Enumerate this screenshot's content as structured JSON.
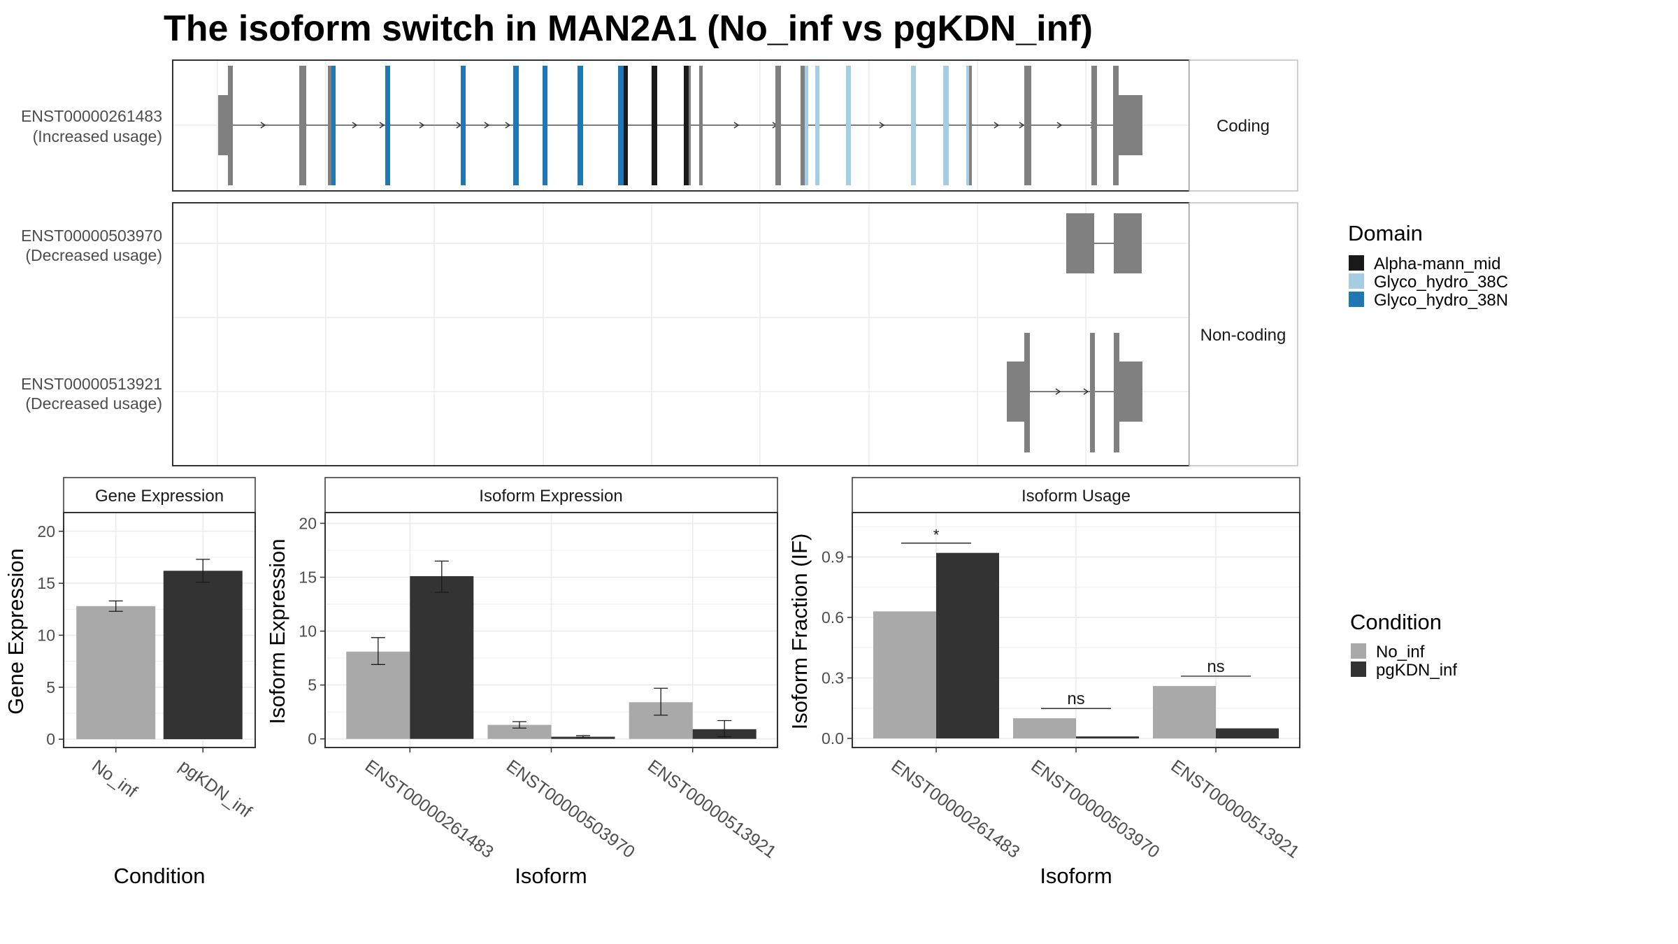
{
  "title": "The isoform switch in MAN2A1 (No_inf vs pgKDN_inf)",
  "colors": {
    "intron": "#808080",
    "Alpha-mann_mid": "#1a1a1a",
    "Glyco_hydro_38C": "#a6cee3",
    "Glyco_hydro_38N": "#1f78b4",
    "No_inf": "#a9a9a9",
    "pgKDN_inf": "#333333"
  },
  "structure": {
    "facets": [
      "Coding",
      "Non-coding"
    ],
    "transcripts": [
      {
        "id": "ENST00000261483",
        "usage": "(Increased usage)",
        "facet": "Coding"
      },
      {
        "id": "ENST00000503970",
        "usage": "(Decreased usage)",
        "facet": "Non-coding"
      },
      {
        "id": "ENST00000513921",
        "usage": "(Decreased usage)",
        "facet": "Non-coding"
      }
    ]
  },
  "legend_domain": {
    "title": "Domain",
    "items": [
      {
        "label": "Alpha-mann_mid",
        "color": "#1a1a1a"
      },
      {
        "label": "Glyco_hydro_38C",
        "color": "#a6cee3"
      },
      {
        "label": "Glyco_hydro_38N",
        "color": "#1f78b4"
      }
    ]
  },
  "legend_condition": {
    "title": "Condition",
    "items": [
      {
        "label": "No_inf",
        "color": "#a9a9a9"
      },
      {
        "label": "pgKDN_inf",
        "color": "#333333"
      }
    ]
  },
  "chart_data": [
    {
      "type": "bar",
      "title": "Gene Expression",
      "xlabel": "Condition",
      "ylabel": "Gene Expression",
      "categories": [
        "No_inf",
        "pgKDN_inf"
      ],
      "values": [
        12.8,
        16.2
      ],
      "error": [
        [
          12.3,
          13.3
        ],
        [
          15.1,
          17.3
        ]
      ],
      "ylim": [
        -0.8,
        21.8
      ],
      "yticks": [
        0,
        5,
        10,
        15,
        20
      ]
    },
    {
      "type": "bar",
      "title": "Isoform Expression",
      "xlabel": "Isoform",
      "ylabel": "Isoform Expression",
      "categories": [
        "ENST00000261483",
        "ENST00000503970",
        "ENST00000513921"
      ],
      "series": [
        {
          "name": "No_inf",
          "values": [
            8.1,
            1.3,
            3.4
          ],
          "error": [
            [
              6.9,
              9.4
            ],
            [
              1.0,
              1.6
            ],
            [
              2.2,
              4.7
            ]
          ]
        },
        {
          "name": "pgKDN_inf",
          "values": [
            15.1,
            0.2,
            0.9
          ],
          "error": [
            [
              13.6,
              16.5
            ],
            [
              0.1,
              0.3
            ],
            [
              0.2,
              1.7
            ]
          ]
        }
      ],
      "ylim": [
        -0.8,
        21.0
      ],
      "yticks": [
        0,
        5,
        10,
        15,
        20
      ]
    },
    {
      "type": "bar",
      "title": "Isoform Usage",
      "xlabel": "Isoform",
      "ylabel": "Isoform Fraction (IF)",
      "categories": [
        "ENST00000261483",
        "ENST00000503970",
        "ENST00000513921"
      ],
      "series": [
        {
          "name": "No_inf",
          "values": [
            0.63,
            0.1,
            0.26
          ]
        },
        {
          "name": "pgKDN_inf",
          "values": [
            0.92,
            0.01,
            0.05
          ]
        }
      ],
      "significance": [
        "*",
        "ns",
        "ns"
      ],
      "ylim": [
        -0.045,
        1.12
      ],
      "yticks": [
        0.0,
        0.3,
        0.6,
        0.9
      ],
      "ytick_labels": [
        "0.0",
        "0.3",
        "0.6",
        "0.9"
      ]
    }
  ]
}
